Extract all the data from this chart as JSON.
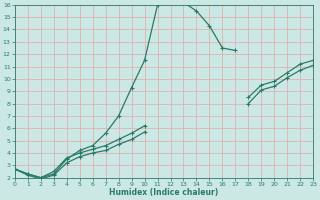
{
  "xlabel": "Humidex (Indice chaleur)",
  "bg_color": "#cce8e4",
  "grid_color": "#b0d8d2",
  "line_color": "#2a7a6a",
  "xlim": [
    0,
    23
  ],
  "ylim": [
    2,
    16
  ],
  "xticks": [
    0,
    1,
    2,
    3,
    4,
    5,
    6,
    7,
    8,
    9,
    10,
    11,
    12,
    13,
    14,
    15,
    16,
    17,
    18,
    19,
    20,
    21,
    22,
    23
  ],
  "yticks": [
    2,
    3,
    4,
    5,
    6,
    7,
    8,
    9,
    10,
    11,
    12,
    13,
    14,
    15,
    16
  ],
  "curve1": {
    "x": [
      0,
      1,
      2,
      3,
      4,
      5,
      6,
      7,
      8,
      9,
      10,
      11,
      12,
      13,
      14,
      15,
      16,
      17
    ],
    "y": [
      2.7,
      2.3,
      2.0,
      2.3,
      3.5,
      4.2,
      4.6,
      5.6,
      7.0,
      9.3,
      11.5,
      16.0,
      16.2,
      16.2,
      15.5,
      14.3,
      12.5,
      12.3
    ]
  },
  "curve2": {
    "x": [
      0,
      1,
      2,
      3,
      4,
      5,
      6,
      7,
      8,
      9,
      10,
      18,
      19,
      20,
      21,
      22,
      23
    ],
    "y": [
      2.7,
      2.3,
      2.0,
      2.5,
      3.6,
      4.0,
      4.3,
      4.6,
      5.1,
      5.6,
      6.2,
      8.5,
      9.5,
      9.8,
      10.5,
      11.2,
      11.5
    ]
  },
  "curve3": {
    "x": [
      0,
      1,
      2,
      3,
      4,
      5,
      6,
      7,
      8,
      9,
      10,
      18,
      19,
      20,
      21,
      22,
      23
    ],
    "y": [
      2.7,
      2.2,
      1.9,
      2.2,
      3.2,
      3.7,
      4.0,
      4.2,
      4.7,
      5.1,
      5.7,
      8.0,
      9.1,
      9.4,
      10.1,
      10.7,
      11.1
    ]
  }
}
